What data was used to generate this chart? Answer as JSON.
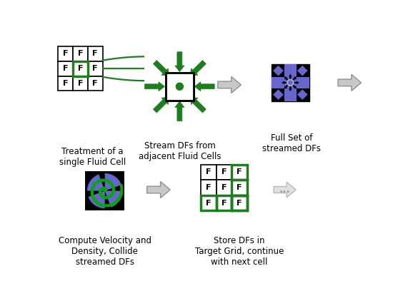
{
  "bg_color": "#ffffff",
  "green": "#1e7d1e",
  "black": "#000000",
  "purple": "#6666cc",
  "gray_fill": "#c8c8c8",
  "gray_edge": "#909090",
  "label1": "Treatment of a\nsingle Fluid Cell",
  "label2": "Stream DFs from\nadjacent Fluid Cells",
  "label3": "Full Set of\nstreamed DFs",
  "label4": "Compute Velocity and\nDensity, Collide\nstreamed DFs",
  "label5": "Store DFs in\nTarget Grid, continue\nwith next cell",
  "label6": "..."
}
